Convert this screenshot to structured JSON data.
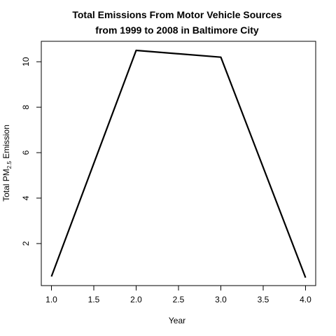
{
  "chart_data": {
    "type": "line",
    "title_line1": "Total Emissions From Motor Vehicle Sources",
    "title_line2": "from 1999 to 2008 in Baltimore City",
    "xlabel": "Year",
    "ylabel_prefix": "Total PM",
    "ylabel_subscript": "2.5",
    "ylabel_suffix": " Emission",
    "x": [
      1,
      2,
      3,
      4
    ],
    "y": [
      0.55,
      10.5,
      10.2,
      0.5
    ],
    "xlim": [
      0.88,
      4.12
    ],
    "ylim": [
      0.15,
      10.9
    ],
    "xticks": [
      1.0,
      1.5,
      2.0,
      2.5,
      3.0,
      3.5,
      4.0
    ],
    "xtick_labels": [
      "1.0",
      "1.5",
      "2.0",
      "2.5",
      "3.0",
      "3.5",
      "4.0"
    ],
    "yticks": [
      2,
      4,
      6,
      8,
      10
    ],
    "ytick_labels": [
      "2",
      "4",
      "6",
      "8",
      "10"
    ],
    "grid": false,
    "line_color": "#000000"
  }
}
